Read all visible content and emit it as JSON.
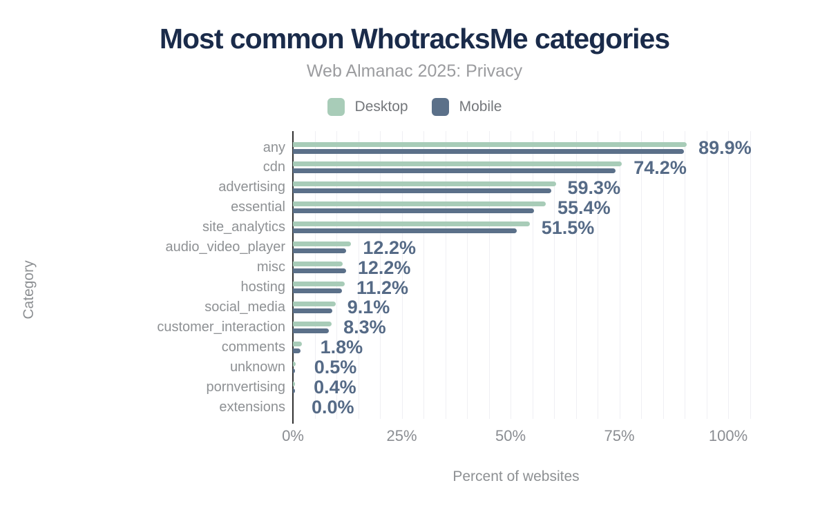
{
  "colors": {
    "title": "#1a2b4a",
    "subtitle_text": "#9b9c9f",
    "axis_text": "#8d9093",
    "data_label": "#556a86",
    "desktop_series": "#a8ccb8",
    "mobile_series": "#5b7089",
    "axis_line": "#303030",
    "gridline": "#efeff3"
  },
  "chart_data": {
    "type": "bar",
    "orientation": "horizontal",
    "title": "Most common WhotracksMe categories",
    "subtitle": "Web Almanac 2025: Privacy",
    "xlabel": "Percent of websites",
    "ylabel": "Category",
    "legend_position": "top",
    "grid": "vertical minor lines every 5%",
    "gridline_step_pct": 5,
    "xlim": [
      0,
      106
    ],
    "categories": [
      "any",
      "cdn",
      "advertising",
      "essential",
      "site_analytics",
      "audio_video_player",
      "misc",
      "hosting",
      "social_media",
      "customer_interaction",
      "comments",
      "unknown",
      "pornvertising",
      "extensions"
    ],
    "series": [
      {
        "name": "Desktop",
        "color": "#a8ccb8",
        "values": [
          90.5,
          75.6,
          60.4,
          58.1,
          54.4,
          13.4,
          11.4,
          11.9,
          9.8,
          8.9,
          2.0,
          0.6,
          0.5,
          0.0
        ]
      },
      {
        "name": "Mobile",
        "color": "#5b7089",
        "values": [
          89.9,
          74.2,
          59.3,
          55.4,
          51.5,
          12.2,
          12.2,
          11.2,
          9.1,
          8.3,
          1.8,
          0.5,
          0.4,
          0.0
        ]
      }
    ],
    "data_labels": {
      "labeled_series": "Mobile",
      "values": [
        "89.9%",
        "74.2%",
        "59.3%",
        "55.4%",
        "51.5%",
        "12.2%",
        "12.2%",
        "11.2%",
        "9.1%",
        "8.3%",
        "1.8%",
        "0.5%",
        "0.4%",
        "0.0%"
      ]
    },
    "xticks": [
      {
        "value": 0,
        "label": "0%"
      },
      {
        "value": 25,
        "label": "25%"
      },
      {
        "value": 50,
        "label": "50%"
      },
      {
        "value": 75,
        "label": "75%"
      },
      {
        "value": 100,
        "label": "100%"
      }
    ]
  }
}
